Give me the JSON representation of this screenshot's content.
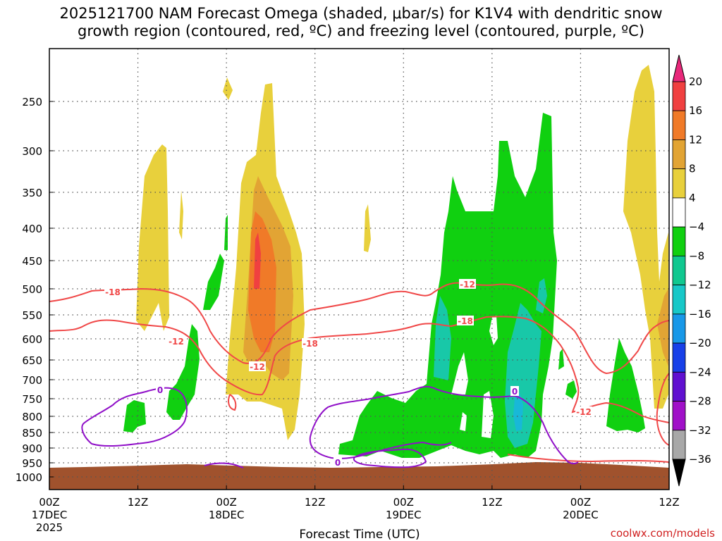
{
  "chart_data": {
    "type": "time-height cross section",
    "title_line1": "2025121700 NAM Forecast Omega (shaded, μbar/s) for K1V4 with dendritic snow",
    "title_line2": "growth region (contoured, red, ºC) and freezing level (contoured, purple, ºC)",
    "xlabel": "Forecast Time (UTC)",
    "credit": "coolwx.com/models",
    "y_axis": {
      "unit": "hPa",
      "ticks": [
        250,
        300,
        350,
        400,
        450,
        500,
        550,
        600,
        650,
        700,
        750,
        800,
        850,
        900,
        950,
        1000
      ],
      "range": [
        1000,
        210
      ]
    },
    "x_axis": {
      "range_hours": [
        0,
        84
      ],
      "ticks": [
        {
          "hour": 0,
          "label": "00Z",
          "date": "17DEC",
          "year": "2025"
        },
        {
          "hour": 12,
          "label": "12Z"
        },
        {
          "hour": 24,
          "label": "00Z",
          "date": "18DEC"
        },
        {
          "hour": 36,
          "label": "12Z"
        },
        {
          "hour": 48,
          "label": "00Z",
          "date": "19DEC"
        },
        {
          "hour": 60,
          "label": "12Z"
        },
        {
          "hour": 72,
          "label": "00Z",
          "date": "20DEC"
        },
        {
          "hour": 84,
          "label": "12Z"
        }
      ]
    },
    "colorbar": {
      "labels": [
        "20",
        "16",
        "12",
        "8",
        "4",
        "−4",
        "−8",
        "−12",
        "−16",
        "−20",
        "−24",
        "−28",
        "−32",
        "−36"
      ],
      "colors": [
        "#e8287a",
        "#f04040",
        "#f07a28",
        "#e2a434",
        "#e8d03c",
        "#ffffff",
        "#10d010",
        "#10c890",
        "#18c8c8",
        "#1898e8",
        "#1840e8",
        "#6010d0",
        "#a010c8",
        "#a8a8a8",
        "#000000"
      ]
    },
    "contour_labels": {
      "temperature": [
        "-18",
        "-12",
        "-12",
        "-18",
        "-18",
        "-12",
        "-12"
      ],
      "freezing": [
        "0",
        "0",
        "0"
      ]
    },
    "colors": {
      "temp_contour": "#f04848",
      "freezing_contour": "#9010c8",
      "ground": "#a0522d",
      "omega_yellow": "#e8d03c",
      "omega_gold": "#e2a434",
      "omega_orange": "#f07a28",
      "omega_red": "#f04040",
      "omega_green": "#10d010",
      "omega_teal": "#18c8a8",
      "omega_cyan": "#18b8d8"
    }
  }
}
